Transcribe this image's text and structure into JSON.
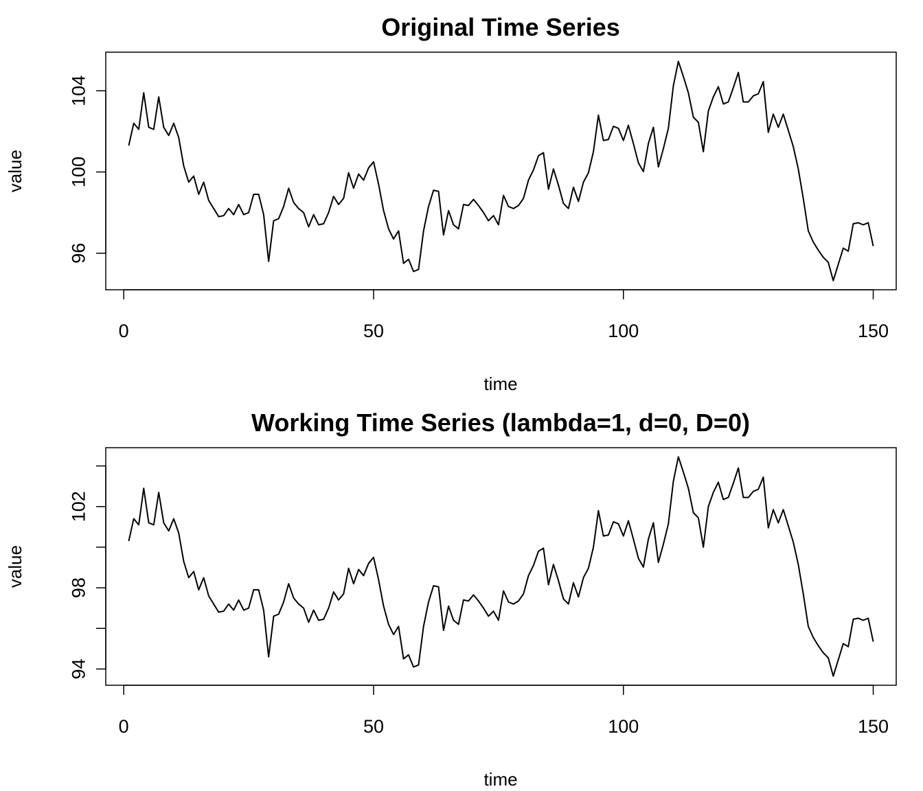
{
  "chart_data": [
    {
      "type": "line",
      "title": "Original Time Series",
      "xlabel": "time",
      "ylabel": "value",
      "xlim": [
        -3.6,
        154.6
      ],
      "ylim": [
        94.2,
        105.9
      ],
      "xticks": [
        0,
        50,
        100,
        150
      ],
      "xtick_labels": [
        "0",
        "50",
        "100",
        "150"
      ],
      "yticks": [
        96,
        100,
        104
      ],
      "ytick_labels": [
        "96",
        "100",
        "104"
      ],
      "grid": false,
      "series": [
        {
          "x_start": 1,
          "values": [
            101.3,
            102.4,
            102.1,
            103.9,
            102.2,
            102.1,
            103.7,
            102.2,
            101.8,
            102.4,
            101.7,
            100.3,
            99.5,
            99.8,
            98.9,
            99.5,
            98.6,
            98.2,
            97.8,
            97.85,
            98.2,
            97.9,
            98.4,
            97.9,
            98.0,
            98.9,
            98.9,
            97.9,
            95.6,
            97.6,
            97.7,
            98.3,
            99.2,
            98.5,
            98.2,
            98.0,
            97.3,
            97.9,
            97.4,
            97.45,
            98.0,
            98.8,
            98.4,
            98.7,
            99.96,
            99.2,
            99.9,
            99.6,
            100.2,
            100.5,
            99.4,
            98.1,
            97.2,
            96.7,
            97.1,
            95.5,
            95.7,
            95.1,
            95.2,
            97.1,
            98.3,
            99.1,
            99.05,
            96.9,
            98.1,
            97.4,
            97.2,
            98.4,
            98.35,
            98.65,
            98.35,
            98.0,
            97.6,
            97.85,
            97.4,
            98.85,
            98.3,
            98.2,
            98.35,
            98.7,
            99.6,
            100.1,
            100.8,
            100.95,
            99.15,
            100.15,
            99.35,
            98.45,
            98.2,
            99.25,
            98.55,
            99.5,
            99.96,
            101.0,
            102.8,
            101.55,
            101.6,
            102.25,
            102.15,
            101.55,
            102.3,
            101.4,
            100.45,
            100.02,
            101.4,
            102.2,
            100.25,
            101.15,
            102.15,
            104.25,
            105.45,
            104.7,
            103.9,
            102.7,
            102.45,
            101.0,
            103.0,
            103.7,
            104.2,
            103.35,
            103.45,
            104.15,
            104.9,
            103.45,
            103.45,
            103.75,
            103.85,
            104.45,
            101.95,
            102.85,
            102.2,
            102.85,
            102.05,
            101.25,
            100.15,
            98.7,
            97.1,
            96.55,
            96.15,
            95.8,
            95.55,
            94.65,
            95.45,
            96.25,
            96.1,
            97.45,
            97.5,
            97.4,
            97.5,
            96.35
          ]
        }
      ]
    },
    {
      "type": "line",
      "title": "Working Time Series (lambda=1, d=0, D=0)",
      "xlabel": "time",
      "ylabel": "value",
      "xlim": [
        -3.6,
        154.6
      ],
      "ylim": [
        93.2,
        104.9
      ],
      "xticks": [
        0,
        50,
        100,
        150
      ],
      "xtick_labels": [
        "0",
        "50",
        "100",
        "150"
      ],
      "yticks": [
        94,
        96,
        98,
        100,
        102,
        104
      ],
      "ytick_labels": [
        "94",
        "",
        "98",
        "",
        "102",
        ""
      ],
      "grid": false,
      "series": [
        {
          "x_start": 1,
          "values": [
            100.3,
            101.4,
            101.1,
            102.9,
            101.2,
            101.1,
            102.7,
            101.2,
            100.8,
            101.4,
            100.7,
            99.3,
            98.5,
            98.8,
            97.9,
            98.5,
            97.6,
            97.2,
            96.8,
            96.85,
            97.2,
            96.9,
            97.4,
            96.9,
            97.0,
            97.9,
            97.9,
            96.9,
            94.6,
            96.6,
            96.7,
            97.3,
            98.2,
            97.5,
            97.2,
            97.0,
            96.3,
            96.9,
            96.4,
            96.45,
            97.0,
            97.8,
            97.4,
            97.7,
            98.96,
            98.2,
            98.9,
            98.6,
            99.2,
            99.5,
            98.4,
            97.1,
            96.2,
            95.7,
            96.1,
            94.5,
            94.7,
            94.1,
            94.2,
            96.1,
            97.3,
            98.1,
            98.05,
            95.9,
            97.1,
            96.4,
            96.2,
            97.4,
            97.35,
            97.65,
            97.35,
            97.0,
            96.6,
            96.85,
            96.4,
            97.85,
            97.3,
            97.2,
            97.35,
            97.7,
            98.6,
            99.1,
            99.8,
            99.95,
            98.15,
            99.15,
            98.35,
            97.45,
            97.2,
            98.25,
            97.55,
            98.5,
            98.96,
            100.0,
            101.8,
            100.55,
            100.6,
            101.25,
            101.15,
            100.55,
            101.3,
            100.4,
            99.45,
            99.02,
            100.4,
            101.2,
            99.25,
            100.15,
            101.15,
            103.25,
            104.45,
            103.7,
            102.9,
            101.7,
            101.45,
            100.0,
            102.0,
            102.7,
            103.2,
            102.35,
            102.45,
            103.15,
            103.9,
            102.45,
            102.45,
            102.75,
            102.85,
            103.45,
            100.95,
            101.85,
            101.2,
            101.85,
            101.05,
            100.25,
            99.15,
            97.7,
            96.1,
            95.55,
            95.15,
            94.8,
            94.55,
            93.65,
            94.45,
            95.25,
            95.1,
            96.45,
            96.5,
            96.4,
            96.5,
            95.35
          ]
        }
      ]
    }
  ]
}
